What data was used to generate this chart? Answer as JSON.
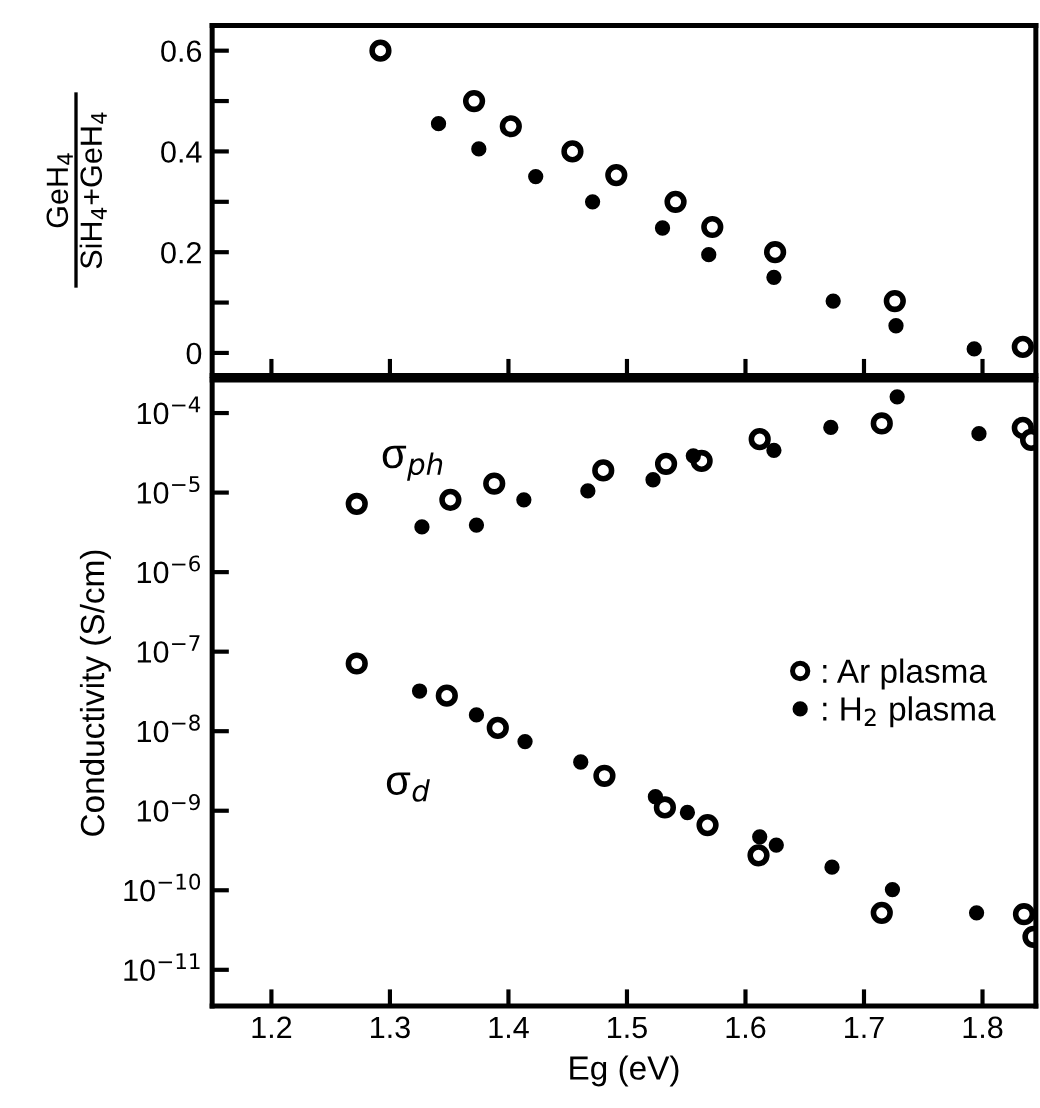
{
  "chart_data": [
    {
      "type": "scatter",
      "ylabel": "GeH$_{4}$\nSiH$_{4}$+GeH$_{4}$",
      "xlim": [
        1.15,
        1.845
      ],
      "xticks": [
        1.2,
        1.3,
        1.4,
        1.5,
        1.6,
        1.7,
        1.8
      ],
      "ylim": [
        -0.045,
        0.65
      ],
      "yticks": [
        0,
        {
          "value": 0.1,
          "label": null
        },
        0.2,
        {
          "value": 0.3,
          "label": null
        },
        0.4,
        {
          "value": 0.5,
          "label": null
        },
        0.6
      ],
      "tick_labels": "y",
      "grid": false,
      "legend": false,
      "marker": "circle",
      "series": [
        {
          "color": "#ffffff",
          "x": [
            1.292,
            1.371,
            1.402,
            1.454,
            1.491,
            1.541,
            1.572,
            1.625,
            1.726,
            1.834
          ],
          "values": [
            0.6,
            0.5,
            0.45,
            0.4,
            0.353,
            0.3,
            0.25,
            0.2,
            0.103,
            0.012
          ]
        },
        {
          "color": "#000000",
          "x": [
            1.341,
            1.375,
            1.423,
            1.471,
            1.53,
            1.569,
            1.624,
            1.674,
            1.727,
            1.793
          ],
          "values": [
            0.455,
            0.405,
            0.35,
            0.3,
            0.248,
            0.195,
            0.15,
            0.103,
            0.054,
            0.008
          ]
        }
      ]
    },
    {
      "type": "scatter",
      "xlabel": "Eg (eV)",
      "ylabel": "Conductivity (S/cm)",
      "log": "y",
      "xlim": [
        1.15,
        1.845
      ],
      "xticks": [
        1.2,
        1.3,
        1.4,
        1.5,
        1.6,
        1.7,
        1.8
      ],
      "ylim": [
        3.5e-12,
        0.00026
      ],
      "yticks": [
        {
          "value": 1e-11,
          "label": "10$^{−11}$"
        },
        {
          "value": 1e-10,
          "label": "10$^{−10}$"
        },
        {
          "value": 1e-09,
          "label": "10$^{−9}$"
        },
        {
          "value": 1e-08,
          "label": "10$^{−8}$"
        },
        {
          "value": 1e-07,
          "label": "10$^{−7}$"
        },
        {
          "value": 1e-06,
          "label": "10$^{−6}$"
        },
        {
          "value": 1e-05,
          "label": "10$^{−5}$"
        },
        {
          "value": 0.0001,
          "label": "10$^{−4}$"
        }
      ],
      "grid": false,
      "legend": "right",
      "marker": "circle",
      "annotations": [
        "σ$_{ph}$",
        "σ$_{d}$"
      ],
      "series": [
        {
          "name": ": Ar plasma",
          "color": "#ffffff",
          "x": [
            1.272,
            1.351,
            1.388,
            1.48,
            1.533,
            1.563,
            1.612,
            1.715,
            1.834,
            1.841
          ],
          "values": [
            7.2e-06,
            8.1e-06,
            1.3e-05,
            1.9e-05,
            2.3e-05,
            2.5e-05,
            4.7e-05,
            7.4e-05,
            6.5e-05,
            4.6e-05
          ]
        },
        {
          "name": ": H$_{2}$ plasma",
          "color": "#000000",
          "x": [
            1.327,
            1.373,
            1.413,
            1.467,
            1.522,
            1.556,
            1.624,
            1.672,
            1.728,
            1.797
          ],
          "values": [
            3.7e-06,
            3.9e-06,
            8.1e-06,
            1.05e-05,
            1.45e-05,
            2.9e-05,
            3.4e-05,
            6.6e-05,
            0.00016,
            5.5e-05
          ]
        },
        {
          "color": "#ffffff",
          "x": [
            1.272,
            1.348,
            1.391,
            1.481,
            1.532,
            1.568,
            1.611,
            1.715,
            1.835,
            1.843
          ],
          "values": [
            7.1e-08,
            2.8e-08,
            1.1e-08,
            2.75e-09,
            1.1e-09,
            6.6e-10,
            2.75e-10,
            5.2e-11,
            5e-11,
            2.6e-11
          ]
        },
        {
          "color": "#000000",
          "x": [
            1.325,
            1.373,
            1.414,
            1.461,
            1.524,
            1.551,
            1.612,
            1.626,
            1.673,
            1.724,
            1.795
          ],
          "values": [
            3.2e-08,
            1.6e-08,
            7.4e-09,
            4.1e-09,
            1.5e-09,
            9.5e-10,
            4.7e-10,
            3.7e-10,
            1.95e-10,
            1.02e-10,
            5.2e-11
          ]
        }
      ]
    }
  ]
}
